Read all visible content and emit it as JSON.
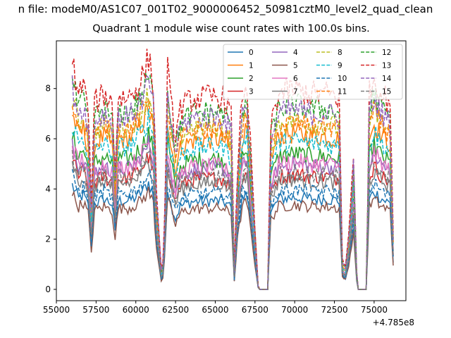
{
  "figure": {
    "suptitle": "n file: modeM0/AS1C07_001T02_9000006452_50981cztM0_level2_quad_clean",
    "title": "Quadrant 1 module wise count rates with 100.0s bins.",
    "x_offset_label": "+4.785e8"
  },
  "chart_data": {
    "type": "line",
    "title": "Quadrant 1 module wise count rates with 100.0s bins.",
    "xlabel": "",
    "ylabel": "",
    "xlim": [
      55000,
      77000
    ],
    "ylim": [
      -0.45,
      9.9
    ],
    "x_ticks": [
      55000,
      57500,
      60000,
      62500,
      65000,
      67500,
      70000,
      72500,
      75000
    ],
    "y_ticks": [
      0,
      2,
      4,
      6,
      8
    ],
    "x_tick_labels": [
      "55000",
      "57500",
      "60000",
      "62500",
      "65000",
      "67500",
      "70000",
      "72500",
      "75000"
    ],
    "y_tick_labels": [
      "0",
      "2",
      "4",
      "6",
      "8"
    ],
    "x_offset": "+4.785e8",
    "grid": false,
    "legend_position": "top-right",
    "legend_columns": 4,
    "x_start": 56000,
    "x_step": 100,
    "x_end": 76200,
    "series": [
      {
        "name": "0",
        "color": "#1f77b4",
        "dash": "solid",
        "level": 3.6
      },
      {
        "name": "1",
        "color": "#ff7f0e",
        "dash": "solid",
        "level": 6.1
      },
      {
        "name": "2",
        "color": "#2ca02c",
        "dash": "solid",
        "level": 5.3
      },
      {
        "name": "3",
        "color": "#d62728",
        "dash": "solid",
        "level": 4.5
      },
      {
        "name": "4",
        "color": "#9467bd",
        "dash": "solid",
        "level": 4.9
      },
      {
        "name": "5",
        "color": "#8c564b",
        "dash": "solid",
        "level": 3.3
      },
      {
        "name": "6",
        "color": "#e377c2",
        "dash": "solid",
        "level": 5.0
      },
      {
        "name": "7",
        "color": "#7f7f7f",
        "dash": "solid",
        "level": 4.3
      },
      {
        "name": "8",
        "color": "#bcbd22",
        "dash": "dashed",
        "level": 6.6
      },
      {
        "name": "9",
        "color": "#17becf",
        "dash": "dashed",
        "level": 5.8
      },
      {
        "name": "10",
        "color": "#1f77b4",
        "dash": "dashed",
        "level": 3.9
      },
      {
        "name": "11",
        "color": "#ff7f0e",
        "dash": "dashed",
        "level": 6.5
      },
      {
        "name": "12",
        "color": "#2ca02c",
        "dash": "dashed",
        "level": 7.2
      },
      {
        "name": "13",
        "color": "#d62728",
        "dash": "dashed",
        "level": 7.8
      },
      {
        "name": "14",
        "color": "#9467bd",
        "dash": "dashed",
        "level": 7.0
      },
      {
        "name": "15",
        "color": "#7f7f7f",
        "dash": "dashed",
        "level": 4.6
      }
    ],
    "profile": [
      {
        "x": 56000,
        "f": 1.15
      },
      {
        "x": 56400,
        "f": 1.0
      },
      {
        "x": 56700,
        "f": 1.05
      },
      {
        "x": 57000,
        "f": 0.92
      },
      {
        "x": 57200,
        "f": 0.45
      },
      {
        "x": 57400,
        "f": 0.95
      },
      {
        "x": 58000,
        "f": 1.0
      },
      {
        "x": 58500,
        "f": 0.95
      },
      {
        "x": 58700,
        "f": 0.62
      },
      {
        "x": 58900,
        "f": 0.98
      },
      {
        "x": 59500,
        "f": 0.98
      },
      {
        "x": 60000,
        "f": 1.02
      },
      {
        "x": 60500,
        "f": 1.1
      },
      {
        "x": 60800,
        "f": 1.18
      },
      {
        "x": 61100,
        "f": 1.05
      },
      {
        "x": 61300,
        "f": 0.5
      },
      {
        "x": 61500,
        "f": 0.25
      },
      {
        "x": 61650,
        "f": 0.03
      },
      {
        "x": 61800,
        "f": 0.35
      },
      {
        "x": 62000,
        "f": 1.12
      },
      {
        "x": 62200,
        "f": 0.95
      },
      {
        "x": 62500,
        "f": 0.78
      },
      {
        "x": 62800,
        "f": 0.92
      },
      {
        "x": 63500,
        "f": 0.97
      },
      {
        "x": 64500,
        "f": 0.98
      },
      {
        "x": 65500,
        "f": 0.98
      },
      {
        "x": 66000,
        "f": 0.9
      },
      {
        "x": 66200,
        "f": 0.1
      },
      {
        "x": 66400,
        "f": 0.62
      },
      {
        "x": 66700,
        "f": 1.0
      },
      {
        "x": 67000,
        "f": 1.05
      },
      {
        "x": 67300,
        "f": 0.6
      },
      {
        "x": 67500,
        "f": 0.3
      },
      {
        "x": 67700,
        "f": 0.02
      },
      {
        "x": 67800,
        "f": 0.0
      },
      {
        "x": 68300,
        "f": 0.0
      },
      {
        "x": 68500,
        "f": 0.85
      },
      {
        "x": 69000,
        "f": 1.0
      },
      {
        "x": 70000,
        "f": 1.02
      },
      {
        "x": 71000,
        "f": 1.0
      },
      {
        "x": 72000,
        "f": 1.0
      },
      {
        "x": 72800,
        "f": 0.98
      },
      {
        "x": 73000,
        "f": 0.15
      },
      {
        "x": 73200,
        "f": 0.12
      },
      {
        "x": 73400,
        "f": 0.28
      },
      {
        "x": 73700,
        "f": 0.7
      },
      {
        "x": 73900,
        "f": 0.1
      },
      {
        "x": 74000,
        "f": 0.0
      },
      {
        "x": 74500,
        "f": 0.0
      },
      {
        "x": 74700,
        "f": 1.0
      },
      {
        "x": 75000,
        "f": 1.08
      },
      {
        "x": 75500,
        "f": 1.0
      },
      {
        "x": 76000,
        "f": 0.95
      },
      {
        "x": 76200,
        "f": 0.3
      }
    ]
  }
}
